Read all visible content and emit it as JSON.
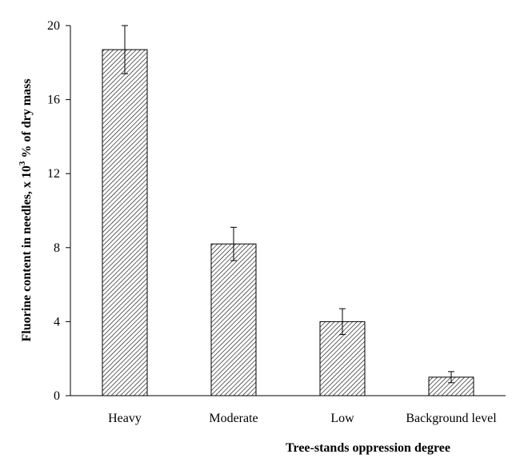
{
  "chart_data": {
    "type": "bar",
    "categories": [
      "Heavy",
      "Moderate",
      "Low",
      "Background level"
    ],
    "values": [
      18.7,
      8.2,
      4.0,
      1.0
    ],
    "errors": [
      1.3,
      0.9,
      0.7,
      0.3
    ],
    "xlabel": "Tree-stands oppression degree",
    "ylabel": {
      "before": "Fluorine content in needles, x 10",
      "sup": "3",
      "after": " % of dry mass"
    },
    "yticks": [
      0,
      4,
      8,
      12,
      16,
      20
    ],
    "ylim": [
      0,
      20
    ],
    "grid": false,
    "legend": "none",
    "bar_pattern": "diagonal-hatch"
  }
}
